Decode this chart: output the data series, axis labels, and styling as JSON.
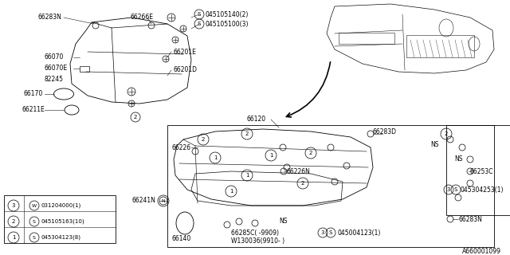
{
  "bg_color": "#ffffff",
  "diagram_id": "A660001099",
  "lw": 0.6,
  "fs": 5.5,
  "legend": [
    {
      "num": "1",
      "symbol": "S",
      "part": "045304123(8)"
    },
    {
      "num": "2",
      "symbol": "S",
      "part": "045105163(10)"
    },
    {
      "num": "3",
      "symbol": "W",
      "part": "031204000(1)"
    }
  ]
}
